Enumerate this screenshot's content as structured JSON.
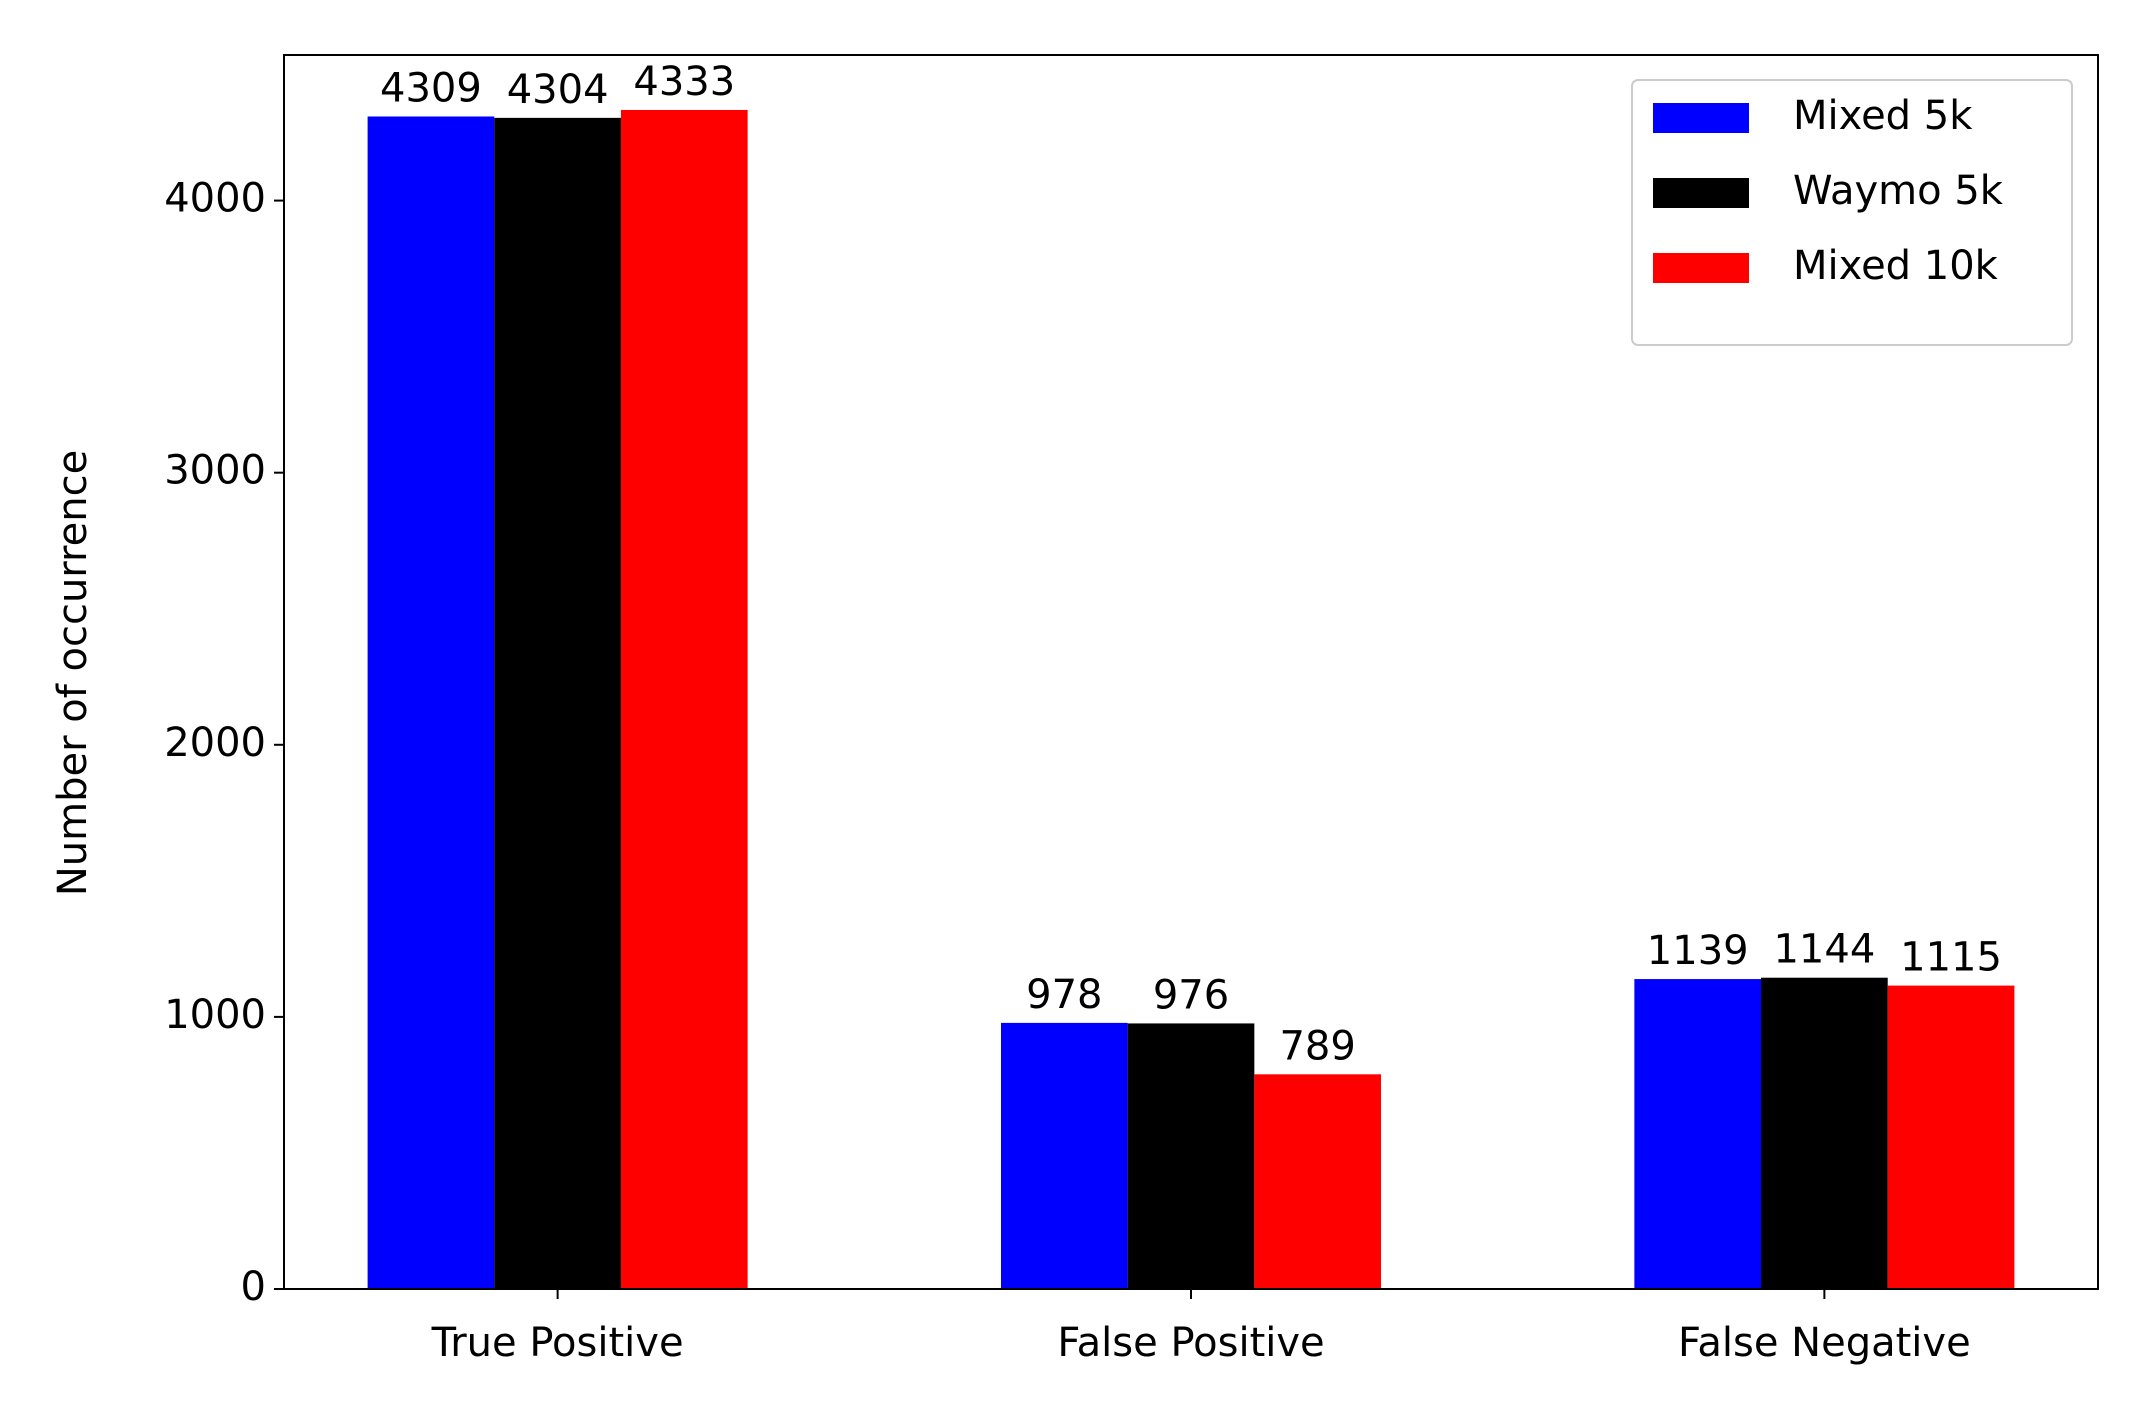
{
  "chart_data": {
    "type": "bar",
    "categories": [
      "True Positive",
      "False Positive",
      "False Negative"
    ],
    "y_label": "Number of occurrence",
    "series": [
      {
        "name": "Mixed 5k",
        "color": "#0000ff",
        "values": [
          4309,
          978,
          1139
        ]
      },
      {
        "name": "Waymo 5k",
        "color": "#000000",
        "values": [
          4304,
          976,
          1144
        ]
      },
      {
        "name": "Mixed 10k",
        "color": "#ff0000",
        "values": [
          4333,
          789,
          1115
        ]
      }
    ],
    "ylim": [
      0,
      4535
    ],
    "yticks": [
      0,
      1000,
      2000,
      3000,
      4000
    ],
    "legend": "upper right"
  }
}
